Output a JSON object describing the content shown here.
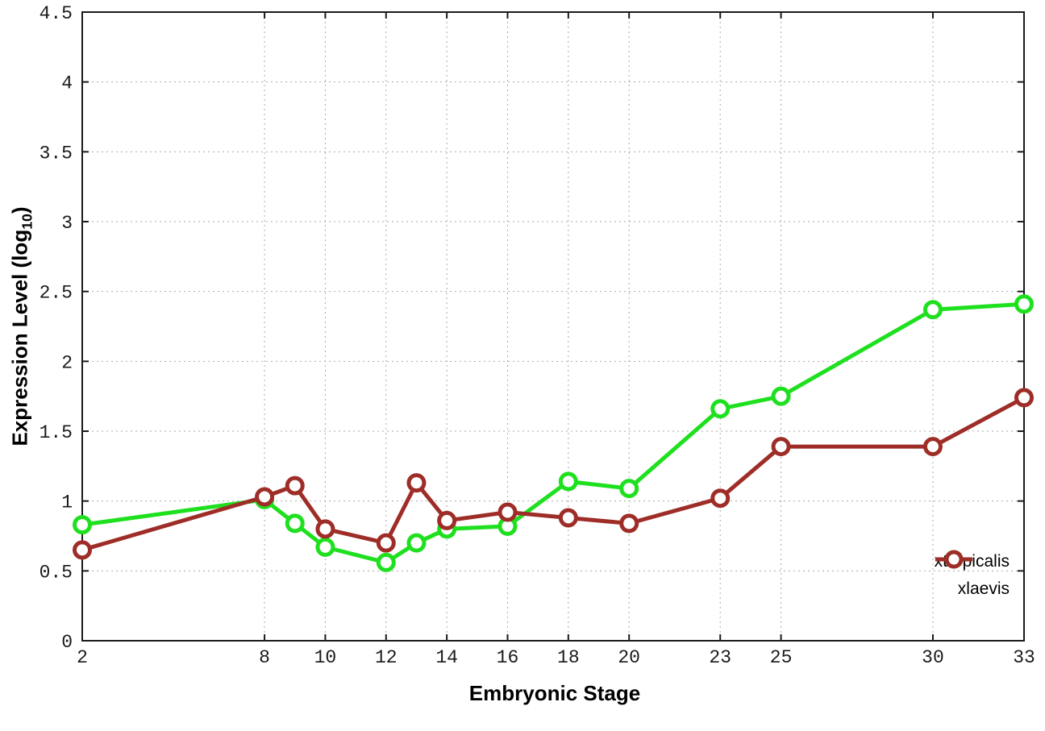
{
  "chart_data": {
    "type": "line",
    "title": "",
    "xlabel": "Embryonic Stage",
    "ylabel": "Expression Level (log10)",
    "ylabel_parts": {
      "prefix": "Expression Level (log",
      "sub": "10",
      "suffix": ")"
    },
    "xlim": [
      2,
      33
    ],
    "ylim": [
      0,
      4.5
    ],
    "xticks": [
      2,
      8,
      10,
      12,
      14,
      16,
      18,
      20,
      23,
      25,
      30,
      33
    ],
    "xtick_labels": [
      "2",
      "8",
      "10",
      "12",
      "14",
      "16",
      "18",
      "20",
      "23",
      "25",
      "30",
      "33"
    ],
    "yticks": [
      0,
      0.5,
      1,
      1.5,
      2,
      2.5,
      3,
      3.5,
      4,
      4.5
    ],
    "ytick_labels": [
      "0",
      "0.5",
      "1",
      "1.5",
      "2",
      "2.5",
      "3",
      "3.5",
      "4",
      "4.5"
    ],
    "grid": true,
    "grid_style": "dotted",
    "grid_color": "#aaaaaa",
    "axis_color": "#1a1a1a",
    "background_color": "#ffffff",
    "legend_position": "inside bottom right",
    "marker": "open-circle",
    "line_width": 5,
    "x": [
      2,
      8,
      9,
      10,
      12,
      13,
      14,
      16,
      18,
      20,
      23,
      25,
      30,
      33
    ],
    "series": [
      {
        "name": "xtropicalis",
        "color": "#1ee01e",
        "values": [
          0.83,
          1.01,
          0.84,
          0.67,
          0.56,
          0.7,
          0.8,
          0.82,
          1.14,
          1.09,
          1.66,
          1.75,
          2.37,
          2.41
        ]
      },
      {
        "name": "xlaevis",
        "color": "#9e2d28",
        "values": [
          0.65,
          1.03,
          1.11,
          0.8,
          0.7,
          1.13,
          0.86,
          0.92,
          0.88,
          0.84,
          1.02,
          1.39,
          1.39,
          1.74
        ]
      }
    ]
  }
}
